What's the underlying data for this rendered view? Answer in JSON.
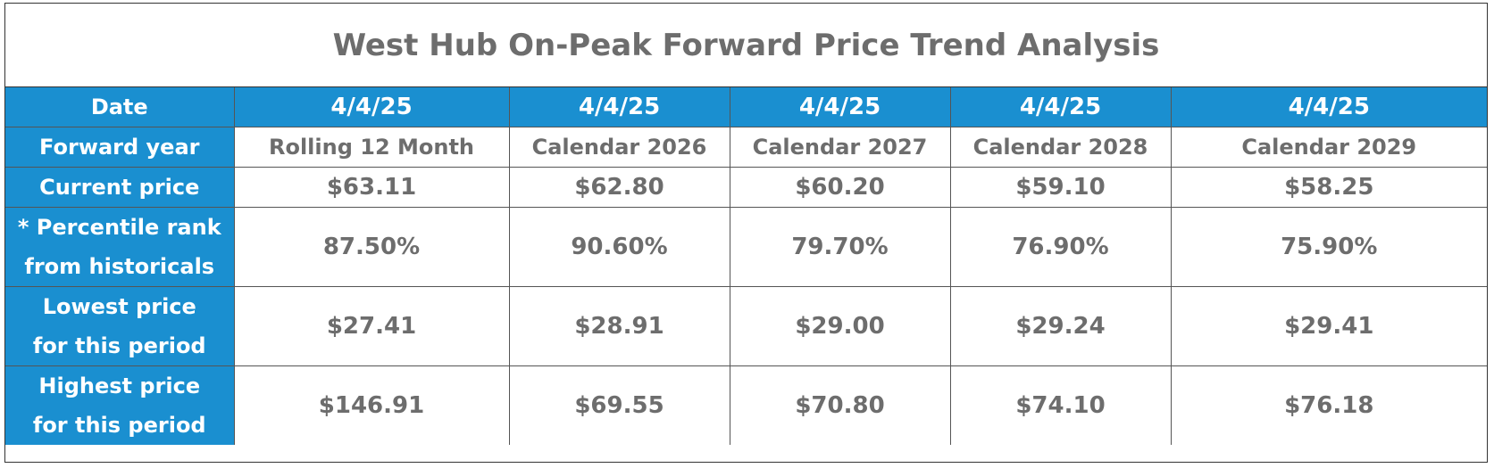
{
  "title": "West Hub On-Peak Forward Price Trend Analysis",
  "colors": {
    "header_blue": "#1a8fd0",
    "text_gray": "#6d6d6d",
    "header_text": "#ffffff"
  },
  "rows": {
    "date": {
      "label": "Date",
      "values": [
        "4/4/25",
        "4/4/25",
        "4/4/25",
        "4/4/25",
        "4/4/25"
      ]
    },
    "forward_year": {
      "label": "Forward year",
      "values": [
        "Rolling 12 Month",
        "Calendar 2026",
        "Calendar 2027",
        "Calendar 2028",
        "Calendar 2029"
      ]
    },
    "current_price": {
      "label": "Current price",
      "values": [
        "$63.11",
        "$62.80",
        "$60.20",
        "$59.10",
        "$58.25"
      ]
    },
    "percentile_rank": {
      "label_line1": "* Percentile rank",
      "label_line2": "from historicals",
      "values": [
        "87.50%",
        "90.60%",
        "79.70%",
        "76.90%",
        "75.90%"
      ]
    },
    "lowest_price": {
      "label_line1": "Lowest price",
      "label_line2": "for this period",
      "values": [
        "$27.41",
        "$28.91",
        "$29.00",
        "$29.24",
        "$29.41"
      ]
    },
    "highest_price": {
      "label_line1": "Highest price",
      "label_line2": "for this period",
      "values": [
        "$146.91",
        "$69.55",
        "$70.80",
        "$74.10",
        "$76.18"
      ]
    }
  }
}
